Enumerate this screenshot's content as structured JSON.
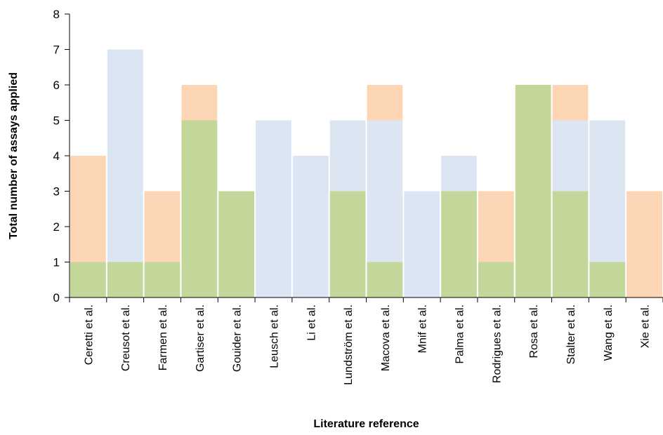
{
  "chart_data": {
    "type": "bar",
    "stacked": true,
    "title": "",
    "xlabel": "Literature reference",
    "ylabel": "Total number of assays applied",
    "ylim": [
      0,
      8
    ],
    "yticks": [
      "0",
      "1",
      "2",
      "3",
      "4",
      "5",
      "6",
      "7",
      "8"
    ],
    "grid": false,
    "legend": "none",
    "categories": [
      "Ceretti et al.",
      "Creusot et al.",
      "Farmen et al.",
      "Gartiser et al.",
      "Gouider et al.",
      "Leusch et al.",
      "Li et al.",
      "Lundström et al.",
      "Macova et al.",
      "Mnif et al.",
      "Palma et al.",
      "Rodrigues et al.",
      "Rosa et al.",
      "Stalter et al.",
      "Wang et al.",
      "Xie et al."
    ],
    "series": [
      {
        "color": "#c4d79b",
        "values": [
          1,
          1,
          1,
          5,
          3,
          0,
          0,
          3,
          1,
          0,
          3,
          1,
          6,
          3,
          1,
          0
        ]
      },
      {
        "color": "#dce6f2",
        "values": [
          0,
          6,
          0,
          0,
          0,
          5,
          4,
          2,
          4,
          3,
          1,
          0,
          0,
          2,
          4,
          0
        ]
      },
      {
        "color": "#fcd5b5",
        "values": [
          3,
          0,
          2,
          1,
          0,
          0,
          0,
          0,
          1,
          0,
          0,
          2,
          0,
          1,
          0,
          3
        ]
      }
    ]
  }
}
